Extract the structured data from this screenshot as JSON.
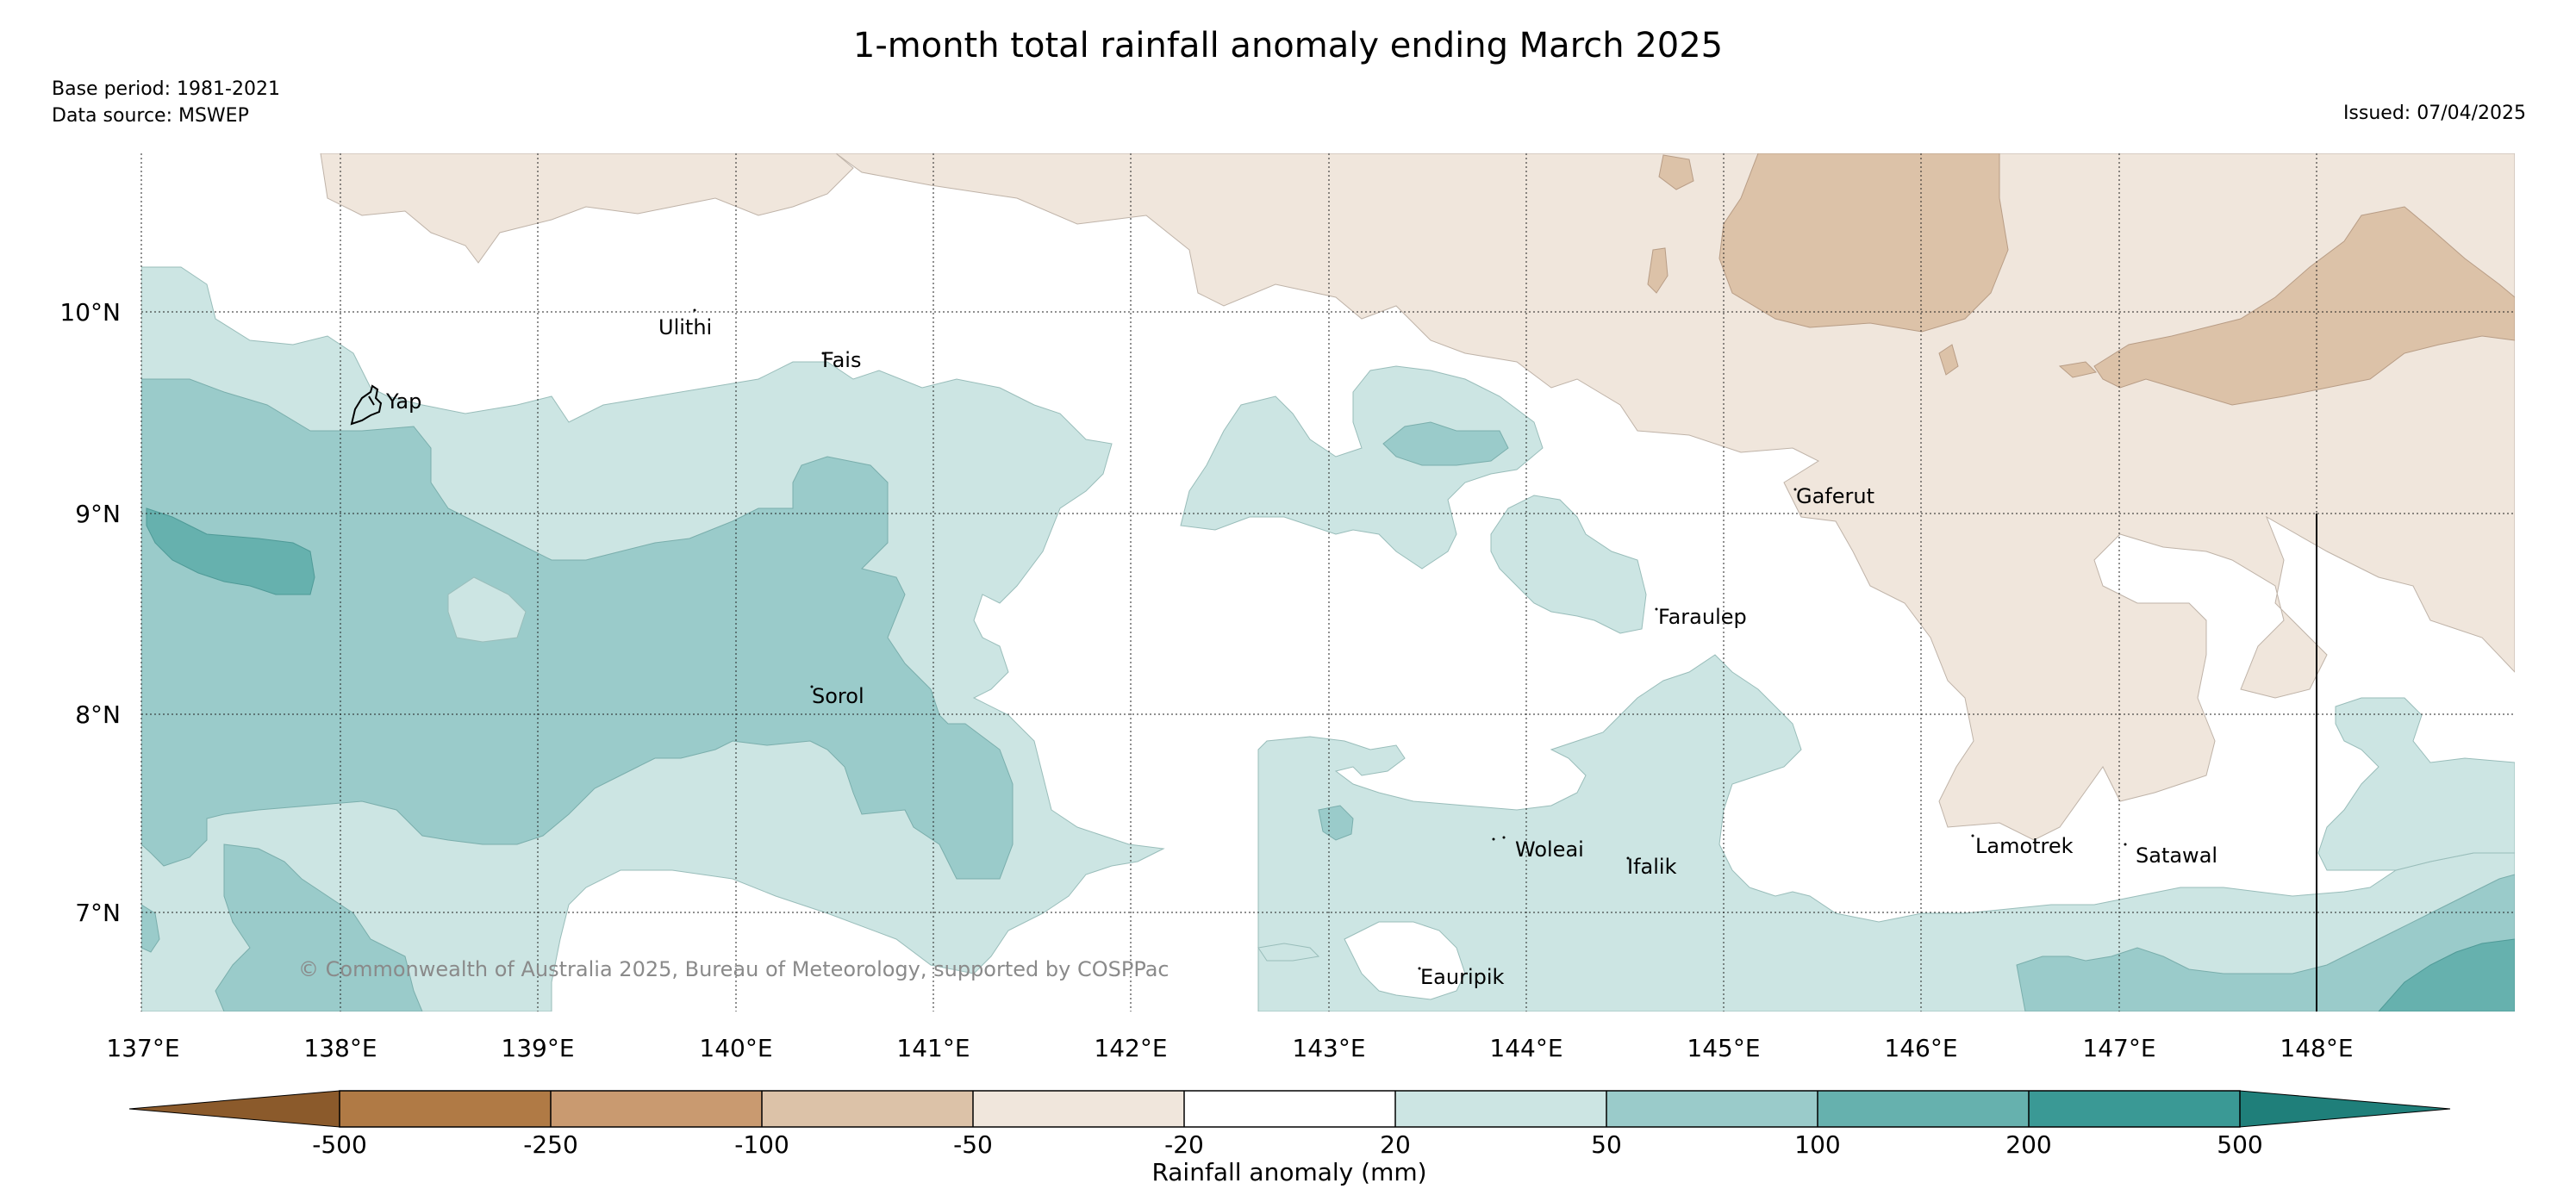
{
  "header": {
    "title": "1-month total rainfall anomaly ending March 2025",
    "base_period": "Base period: 1981-2021",
    "data_source": "Data source: MSWEP",
    "issued": "Issued: 07/04/2025"
  },
  "map": {
    "lat_labels": [
      "10°N",
      "9°N",
      "8°N",
      "7°N"
    ],
    "lon_labels": [
      "137°E",
      "138°E",
      "139°E",
      "140°E",
      "141°E",
      "142°E",
      "143°E",
      "144°E",
      "145°E",
      "146°E",
      "147°E",
      "148°E"
    ],
    "places": [
      "Ulithi",
      "Fais",
      "Yap",
      "Gaferut",
      "Faraulep",
      "Sorol",
      "Woleai",
      "Ifalik",
      "Lamotrek",
      "Satawal",
      "Eauripik"
    ],
    "copyright": "© Commonwealth of Australia 2025, Bureau of Meteorology, supported by COSPPac"
  },
  "legend": {
    "label": "Rainfall anomaly (mm)",
    "ticks": [
      "-500",
      "-250",
      "-100",
      "-50",
      "-20",
      "20",
      "50",
      "100",
      "200",
      "500"
    ],
    "colors": [
      "#8b5a2b",
      "#b07a45",
      "#c99a70",
      "#dcc2a8",
      "#f0e6dc",
      "#ffffff",
      "#cce5e3",
      "#9acbca",
      "#66b1ae",
      "#3a9995",
      "#1f7f7a"
    ]
  }
}
